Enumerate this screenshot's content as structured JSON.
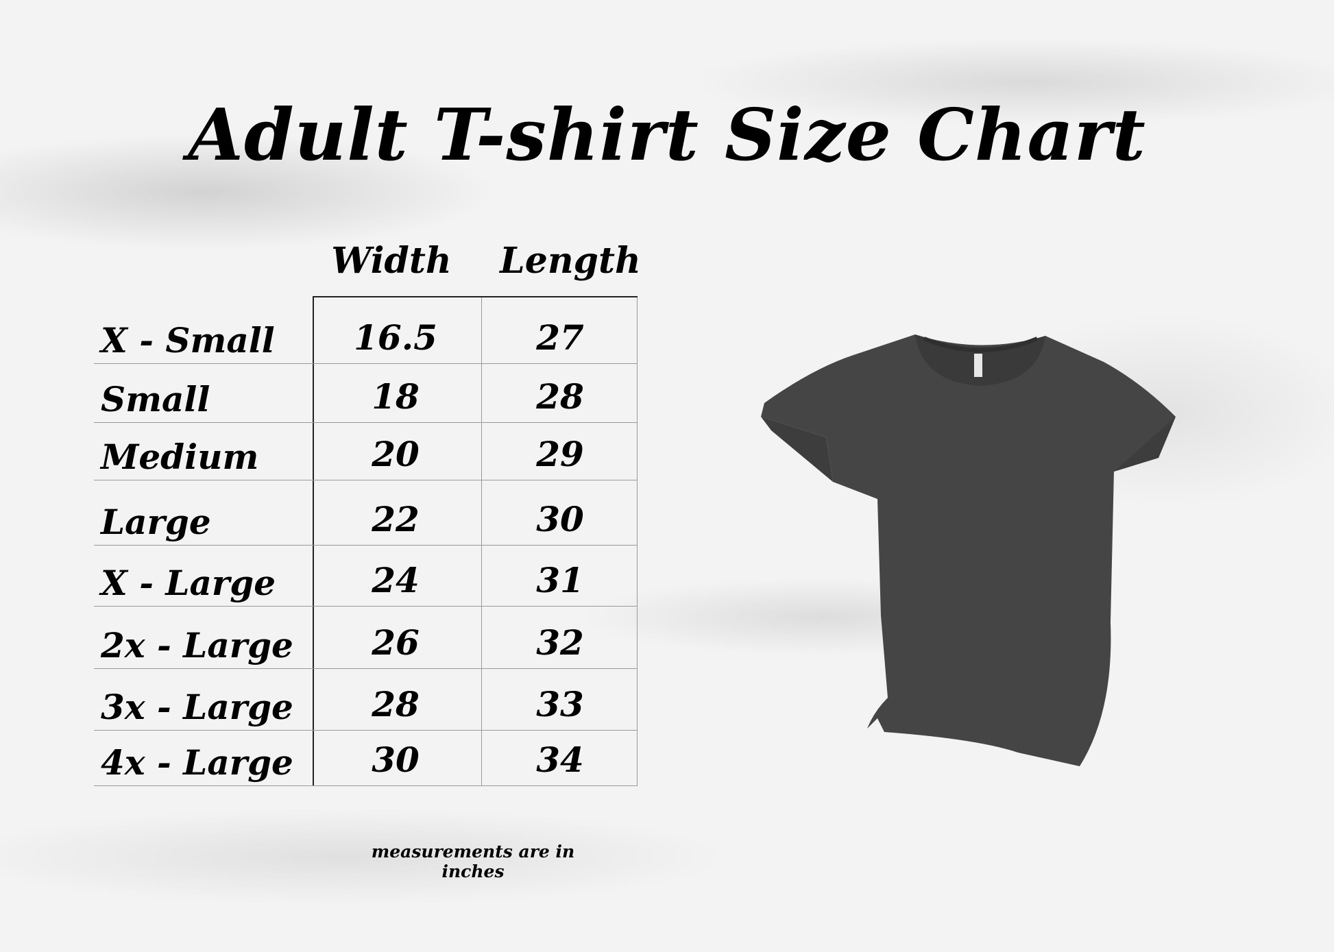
{
  "title": "Adult T-shirt Size Chart",
  "columns": [
    "Width",
    "Length"
  ],
  "rows": [
    {
      "size": "X - Small",
      "width": "16.5",
      "length": "27"
    },
    {
      "size": "Small",
      "width": "18",
      "length": "28"
    },
    {
      "size": "Medium",
      "width": "20",
      "length": "29"
    },
    {
      "size": "Large",
      "width": "22",
      "length": "30"
    },
    {
      "size": "X - Large",
      "width": "24",
      "length": "31"
    },
    {
      "size": "2x - Large",
      "width": "26",
      "length": "32"
    },
    {
      "size": "3x - Large",
      "width": "28",
      "length": "33"
    },
    {
      "size": "4x - Large",
      "width": "30",
      "length": "34"
    }
  ],
  "note": "measurements are in inches",
  "colors": {
    "shirt": "#454545",
    "text": "#000000"
  }
}
